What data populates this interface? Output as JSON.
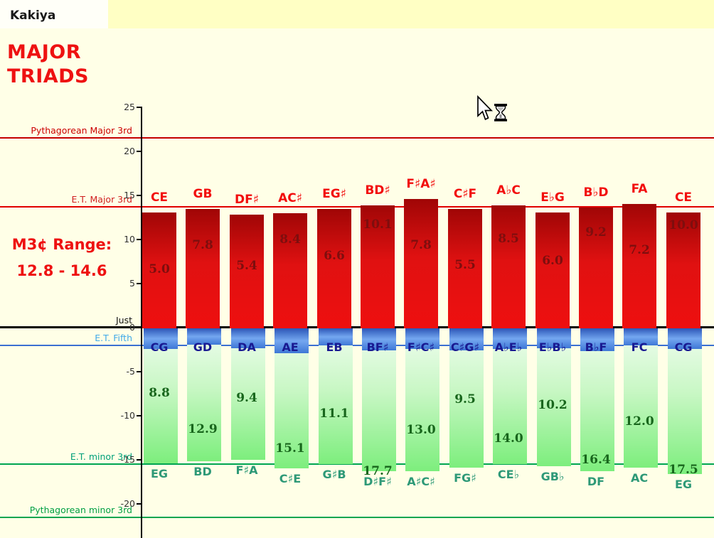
{
  "header": {
    "title": "Kakiya",
    "subtitle_line1": "MAJOR",
    "subtitle_line2": "TRIADS",
    "range_label": "M3¢ Range:",
    "range_value": "12.8 - 14.6"
  },
  "cursor": {
    "icon": "arrow-with-hourglass-busy"
  },
  "colors": {
    "background": "#FFFFE7",
    "highlight_band": "#FFFFC4",
    "left_strip": "#FFFFF8",
    "red_line": "#CC0000",
    "fifth_line": "#3B6FD1",
    "minor_line": "#00A550",
    "just_line": "#000000",
    "red_label": "#F20D0D",
    "red_value": "#7E0E0E",
    "blue_label": "#191991",
    "green_value": "#18661C",
    "teal_label": "#2E9977"
  },
  "chart_data": {
    "type": "bar",
    "description": "Tuning chart: deviation from just intonation (cents) for each major triad. Red bars up = major 3rd size, blue bars down = fifth, green bars down = minor 3rd; printed numbers are the data labels shown on each bar.",
    "unit": "cents",
    "ylim": [
      -24.5,
      25
    ],
    "yticks": [
      25,
      20,
      15,
      10,
      5,
      0,
      -5,
      -10,
      -15,
      -20
    ],
    "legend": "none",
    "grid": "off",
    "reference_lines": [
      {
        "label": "Pythagorean Major 3rd",
        "cents": 21.5,
        "line_color": "#C40000",
        "label_color": "#CC0000"
      },
      {
        "label": "E.T. Major 3rd",
        "cents": 13.7,
        "line_color": "#E00000",
        "label_color": "#D02020"
      },
      {
        "label": "Just",
        "cents": 0,
        "line_color": "#000000",
        "label_color": "#111111"
      },
      {
        "label": "E.T. Fifth",
        "cents": -2.0,
        "line_color": "#3B6FD1",
        "label_color": "#3FA9E8"
      },
      {
        "label": "E.T. minor 3rd",
        "cents": -15.5,
        "line_color": "#00A550",
        "label_color": "#00A079"
      },
      {
        "label": "Pythagorean minor 3rd",
        "cents": -21.5,
        "line_color": "#00A550",
        "label_color": "#00A043"
      }
    ],
    "triads": [
      {
        "major_third": {
          "label": "CE",
          "bar_cents": 13.1,
          "value": "5.0"
        },
        "fifth": {
          "label": "CG",
          "bar_cents": -2.4
        },
        "minor_third": {
          "label": "EG",
          "bar_cents": -15.4,
          "value": "8.8"
        }
      },
      {
        "major_third": {
          "label": "GB",
          "bar_cents": 13.5,
          "value": "7.8"
        },
        "fifth": {
          "label": "GD",
          "bar_cents": -1.9
        },
        "minor_third": {
          "label": "BD",
          "bar_cents": -15.2,
          "value": "12.9"
        }
      },
      {
        "major_third": {
          "label": "DF♯",
          "bar_cents": 12.8,
          "value": "5.4"
        },
        "fifth": {
          "label": "DA",
          "bar_cents": -2.3
        },
        "minor_third": {
          "label": "F♯A",
          "bar_cents": -15.0,
          "value": "9.4"
        }
      },
      {
        "major_third": {
          "label": "AC♯",
          "bar_cents": 13.0,
          "value": "8.4"
        },
        "fifth": {
          "label": "AE",
          "bar_cents": -2.9
        },
        "minor_third": {
          "label": "C♯E",
          "bar_cents": -16.0,
          "value": "15.1"
        }
      },
      {
        "major_third": {
          "label": "EG♯",
          "bar_cents": 13.5,
          "value": "6.6"
        },
        "fifth": {
          "label": "EB",
          "bar_cents": -2.0
        },
        "minor_third": {
          "label": "G♯B",
          "bar_cents": -15.5,
          "value": "11.1"
        }
      },
      {
        "major_third": {
          "label": "BD♯",
          "bar_cents": 13.9,
          "value": "10.1"
        },
        "fifth": {
          "label": "BF♯",
          "bar_cents": -2.6
        },
        "minor_third": {
          "label": "D♯F♯",
          "bar_cents": -16.3,
          "value": "17.7"
        }
      },
      {
        "major_third": {
          "label": "F♯A♯",
          "bar_cents": 14.6,
          "value": "7.8"
        },
        "fifth": {
          "label": "F♯C♯",
          "bar_cents": -2.4
        },
        "minor_third": {
          "label": "A♯C♯",
          "bar_cents": -16.3,
          "value": "13.0"
        }
      },
      {
        "major_third": {
          "label": "C♯F",
          "bar_cents": 13.5,
          "value": "5.5"
        },
        "fifth": {
          "label": "C♯G♯",
          "bar_cents": -2.6
        },
        "minor_third": {
          "label": "FG♯",
          "bar_cents": -15.9,
          "value": "9.5"
        }
      },
      {
        "major_third": {
          "label": "A♭C",
          "bar_cents": 13.9,
          "value": "8.5"
        },
        "fifth": {
          "label": "A♭E♭",
          "bar_cents": -2.4
        },
        "minor_third": {
          "label": "CE♭",
          "bar_cents": -15.5,
          "value": "14.0"
        }
      },
      {
        "major_third": {
          "label": "E♭G",
          "bar_cents": 13.1,
          "value": "6.0"
        },
        "fifth": {
          "label": "E♭B♭",
          "bar_cents": -2.3
        },
        "minor_third": {
          "label": "GB♭",
          "bar_cents": -15.7,
          "value": "10.2"
        }
      },
      {
        "major_third": {
          "label": "B♭D",
          "bar_cents": 13.6,
          "value": "9.2"
        },
        "fifth": {
          "label": "B♭F",
          "bar_cents": -2.7
        },
        "minor_third": {
          "label": "DF",
          "bar_cents": -16.3,
          "value": "16.4"
        }
      },
      {
        "major_third": {
          "label": "FA",
          "bar_cents": 14.0,
          "value": "7.2"
        },
        "fifth": {
          "label": "FC",
          "bar_cents": -2.0
        },
        "minor_third": {
          "label": "AC",
          "bar_cents": -15.9,
          "value": "12.0"
        }
      },
      {
        "major_third": {
          "label": "CE",
          "bar_cents": 13.1,
          "value": "10.0"
        },
        "fifth": {
          "label": "CG",
          "bar_cents": -2.4
        },
        "minor_third": {
          "label": "EG",
          "bar_cents": -16.6,
          "value": "17.5"
        }
      }
    ]
  }
}
